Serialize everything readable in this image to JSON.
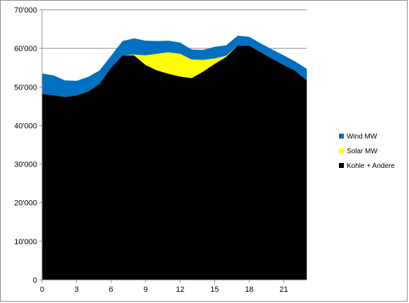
{
  "chart_data": {
    "type": "area",
    "stacked": true,
    "x": [
      0,
      1,
      2,
      3,
      4,
      5,
      6,
      7,
      8,
      9,
      10,
      11,
      12,
      13,
      14,
      15,
      16,
      17,
      18,
      19,
      20,
      21,
      22,
      23
    ],
    "x_ticks": [
      0,
      3,
      6,
      9,
      12,
      15,
      18,
      21
    ],
    "x_tick_labels": [
      "0",
      "3",
      "6",
      "9",
      "12",
      "15",
      "18",
      "21"
    ],
    "ylim": [
      0,
      70000
    ],
    "y_ticks": [
      0,
      10000,
      20000,
      30000,
      40000,
      50000,
      60000,
      70000
    ],
    "y_tick_labels": [
      "0",
      "10'000",
      "20'000",
      "30'000",
      "40'000",
      "50'000",
      "60'000",
      "70'000"
    ],
    "grid": "horizontal major at 10000 steps",
    "legend_position": "right",
    "series": [
      {
        "name": "Kohle + Andere",
        "color": "#000000",
        "values": [
          48200,
          47900,
          47400,
          47800,
          48800,
          50800,
          55000,
          58200,
          58200,
          55700,
          54300,
          53400,
          52700,
          52300,
          54000,
          56000,
          57800,
          60700,
          60700,
          59000,
          57300,
          55700,
          54200,
          51700
        ]
      },
      {
        "name": "Solar MW",
        "color": "#ffff00",
        "values": [
          0,
          0,
          0,
          0,
          0,
          0,
          0,
          0,
          200,
          2500,
          4300,
          5600,
          5900,
          4800,
          3000,
          1400,
          300,
          0,
          0,
          0,
          0,
          0,
          0,
          0
        ]
      },
      {
        "name": "Wind MW",
        "color": "#0070c0",
        "values": [
          5300,
          5100,
          4300,
          3800,
          3800,
          3500,
          3100,
          3700,
          4200,
          3800,
          3300,
          3000,
          2900,
          2600,
          2600,
          3000,
          2700,
          2600,
          2300,
          2300,
          2400,
          2500,
          2400,
          3000
        ]
      }
    ],
    "legend": [
      "Wind MW",
      "Solar MW",
      "Kohle + Andere"
    ]
  }
}
